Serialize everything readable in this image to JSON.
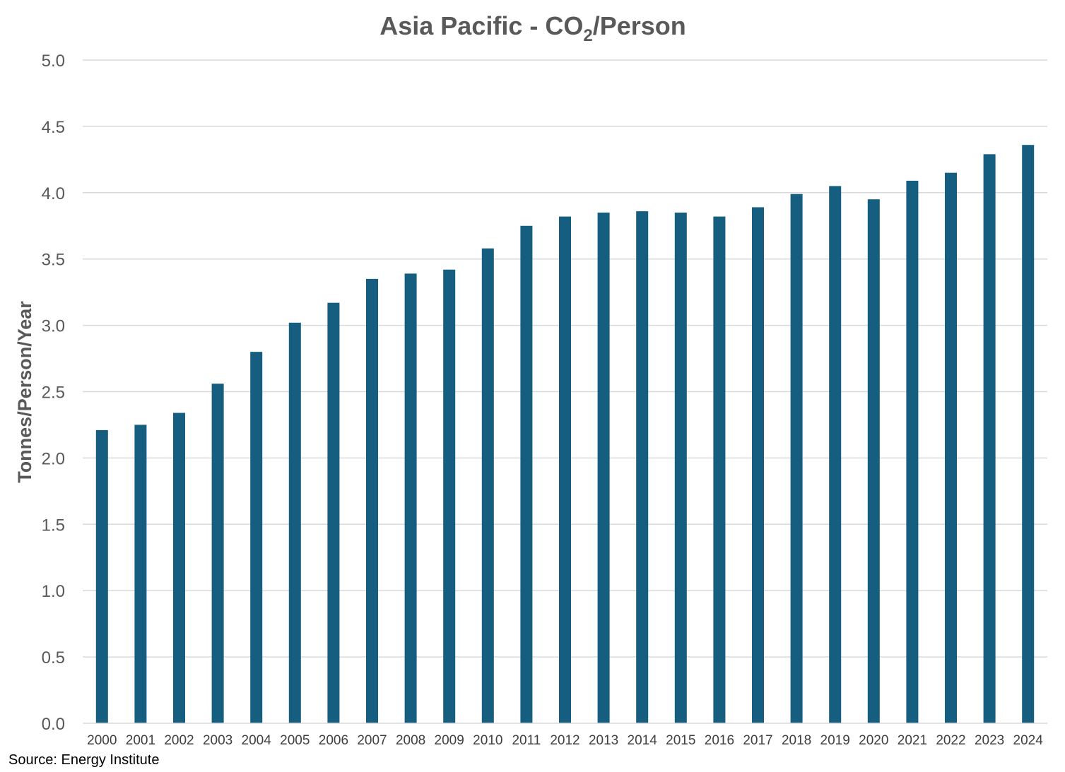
{
  "chart_data": {
    "type": "bar",
    "title": {
      "prefix": "Asia Pacific - CO",
      "subscript": "2",
      "suffix": "/Person"
    },
    "xlabel": "",
    "ylabel": "Tonnes/Person/Year",
    "ylim": [
      0,
      5
    ],
    "yticks": [
      "0.0",
      "0.5",
      "1.0",
      "1.5",
      "2.0",
      "2.5",
      "3.0",
      "3.5",
      "4.0",
      "4.5",
      "5.0"
    ],
    "grid": true,
    "legend": "none",
    "categories": [
      "2000",
      "2001",
      "2002",
      "2003",
      "2004",
      "2005",
      "2006",
      "2007",
      "2008",
      "2009",
      "2010",
      "2011",
      "2012",
      "2013",
      "2014",
      "2015",
      "2016",
      "2017",
      "2018",
      "2019",
      "2020",
      "2021",
      "2022",
      "2023",
      "2024"
    ],
    "values": [
      2.21,
      2.25,
      2.34,
      2.56,
      2.8,
      3.02,
      3.17,
      3.35,
      3.39,
      3.42,
      3.58,
      3.75,
      3.82,
      3.85,
      3.86,
      3.85,
      3.82,
      3.89,
      3.99,
      4.05,
      3.95,
      4.09,
      4.15,
      4.29,
      4.36
    ],
    "bar_color": "#155E80",
    "grid_color": "#D9D9D9"
  },
  "source": "Source: Energy Institute"
}
